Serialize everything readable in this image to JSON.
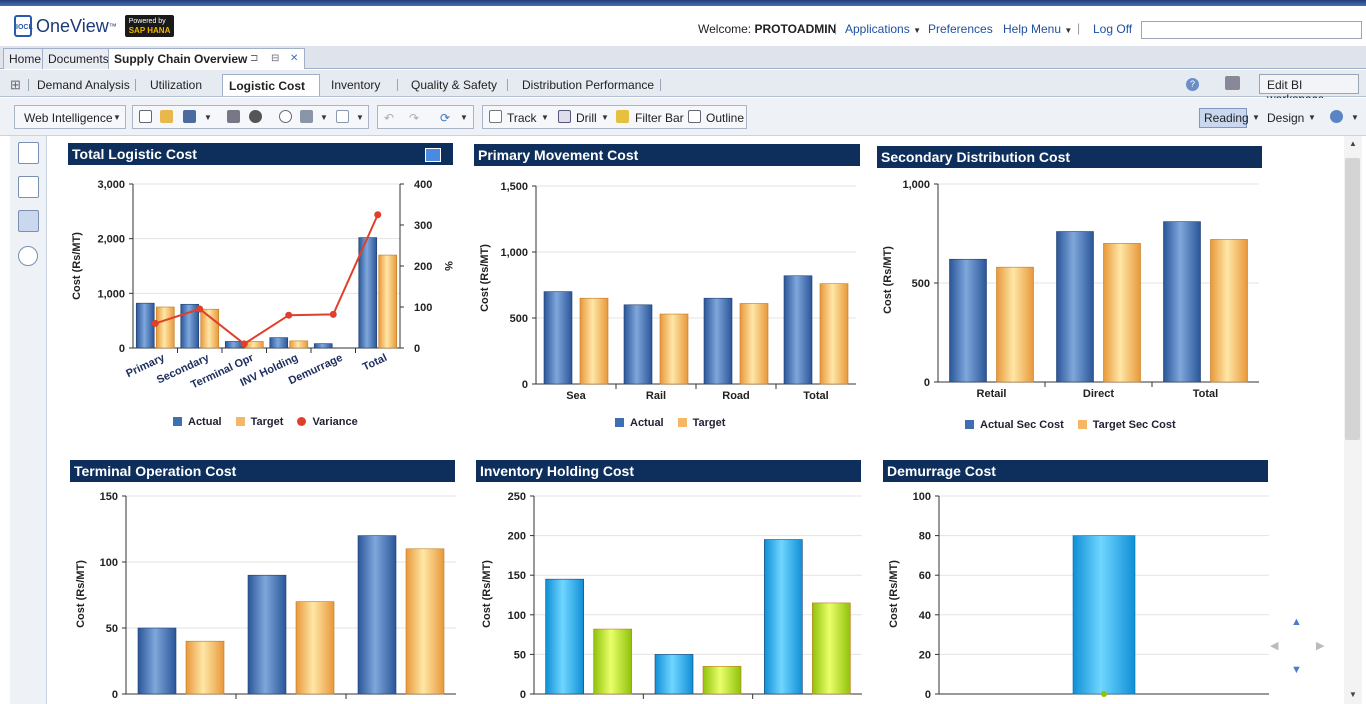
{
  "header": {
    "brand": "OneView",
    "brand_tm": "™",
    "brand_sub": "IOCL",
    "sap_top": "Powered by",
    "sap_name": "SAP HANA",
    "welcome_label": "Welcome:",
    "user": "PROTOADMIN",
    "applications": "Applications",
    "preferences": "Preferences",
    "help_menu": "Help Menu",
    "log_off": "Log Off",
    "search_placeholder": ""
  },
  "top_tabs": [
    "Home",
    "Documents",
    "Supply Chain Overview"
  ],
  "report_tabs": [
    "Demand Analysis",
    "Utilization",
    "Logistic Cost",
    "Inventory",
    "Quality & Safety",
    "Distribution Performance"
  ],
  "edit_bi": "Edit BI workspace",
  "toolbar": {
    "web_intelligence": "Web Intelligence",
    "track": "Track",
    "drill": "Drill",
    "filter_bar": "Filter Bar",
    "outline": "Outline",
    "reading": "Reading",
    "design": "Design"
  },
  "colors": {
    "title_bar": "#0e2f5c",
    "actual": "#3f6fb3",
    "target": "#f5b766",
    "variance": "#e0402b",
    "cyan": "#19a9e8",
    "lime": "#b6e01a"
  },
  "charts": {
    "c1": {
      "title": "Total Logistic Cost",
      "ylabel": "Cost (Rs/MT)",
      "y2label": "%"
    },
    "c2": {
      "title": "Primary Movement Cost",
      "ylabel": "Cost (Rs/MT)"
    },
    "c3": {
      "title": "Secondary Distribution Cost",
      "ylabel": "Cost (Rs/MT)"
    },
    "c4": {
      "title": "Terminal Operation Cost",
      "ylabel": "Cost (Rs/MT)"
    },
    "c5": {
      "title": "Inventory Holding Cost",
      "ylabel": "Cost (Rs/MT)"
    },
    "c6": {
      "title": "Demurrage Cost",
      "ylabel": "Cost (Rs/MT)"
    }
  },
  "chart_data": [
    {
      "type": "bar",
      "title": "Total Logistic Cost",
      "ylabel": "Cost (Rs/MT)",
      "y2label": "%",
      "categories": [
        "Primary",
        "Secondary",
        "Terminal Opr",
        "INV Holding",
        "Demurrage",
        "Total"
      ],
      "ylim": [
        0,
        3000
      ],
      "yticks": [
        "0",
        "1,000",
        "2,000",
        "3,000"
      ],
      "y2lim": [
        0,
        400
      ],
      "y2ticks": [
        "0",
        "100",
        "200",
        "300",
        "400"
      ],
      "series": [
        {
          "name": "Actual",
          "values": [
            820,
            800,
            120,
            190,
            80,
            2020
          ]
        },
        {
          "name": "Target",
          "values": [
            750,
            710,
            120,
            130,
            0,
            1700
          ]
        },
        {
          "name": "Variance",
          "type": "line",
          "axis": "y2",
          "values": [
            60,
            95,
            10,
            80,
            82,
            325
          ]
        }
      ],
      "legend": "bottom"
    },
    {
      "type": "bar",
      "title": "Primary Movement Cost",
      "ylabel": "Cost (Rs/MT)",
      "categories": [
        "Sea",
        "Rail",
        "Road",
        "Total"
      ],
      "ylim": [
        0,
        1500
      ],
      "yticks": [
        "0",
        "500",
        "1,000",
        "1,500"
      ],
      "series": [
        {
          "name": "Actual",
          "values": [
            700,
            600,
            650,
            820
          ]
        },
        {
          "name": "Target",
          "values": [
            650,
            530,
            610,
            760
          ]
        }
      ],
      "legend": "bottom"
    },
    {
      "type": "bar",
      "title": "Secondary Distribution Cost",
      "ylabel": "Cost (Rs/MT)",
      "categories": [
        "Retail",
        "Direct",
        "Total"
      ],
      "ylim": [
        0,
        1000
      ],
      "yticks": [
        "0",
        "500",
        "1,000"
      ],
      "series": [
        {
          "name": "Actual Sec Cost",
          "values": [
            620,
            760,
            810
          ]
        },
        {
          "name": "Target Sec Cost",
          "values": [
            580,
            700,
            720
          ]
        }
      ],
      "legend": "bottom"
    },
    {
      "type": "bar",
      "title": "Terminal Operation Cost",
      "ylabel": "Cost (Rs/MT)",
      "categories": [
        "",
        "",
        ""
      ],
      "ylim": [
        0,
        150
      ],
      "yticks": [
        "0",
        "50",
        "100",
        "150"
      ],
      "series": [
        {
          "values": [
            50,
            90,
            120
          ]
        },
        {
          "values": [
            40,
            70,
            110
          ]
        }
      ]
    },
    {
      "type": "bar",
      "title": "Inventory Holding Cost",
      "ylabel": "Cost (Rs/MT)",
      "categories": [
        "",
        "",
        ""
      ],
      "ylim": [
        0,
        250
      ],
      "yticks": [
        "0",
        "50",
        "100",
        "150",
        "200",
        "250"
      ],
      "series": [
        {
          "values": [
            145,
            50,
            195
          ]
        },
        {
          "values": [
            82,
            35,
            115
          ]
        }
      ]
    },
    {
      "type": "bar",
      "title": "Demurrage Cost",
      "ylabel": "Cost (Rs/MT)",
      "categories": [
        ""
      ],
      "ylim": [
        0,
        100
      ],
      "yticks": [
        "0",
        "20",
        "40",
        "60",
        "80",
        "100"
      ],
      "series": [
        {
          "values": [
            80
          ]
        },
        {
          "values": [
            0
          ]
        }
      ]
    }
  ]
}
